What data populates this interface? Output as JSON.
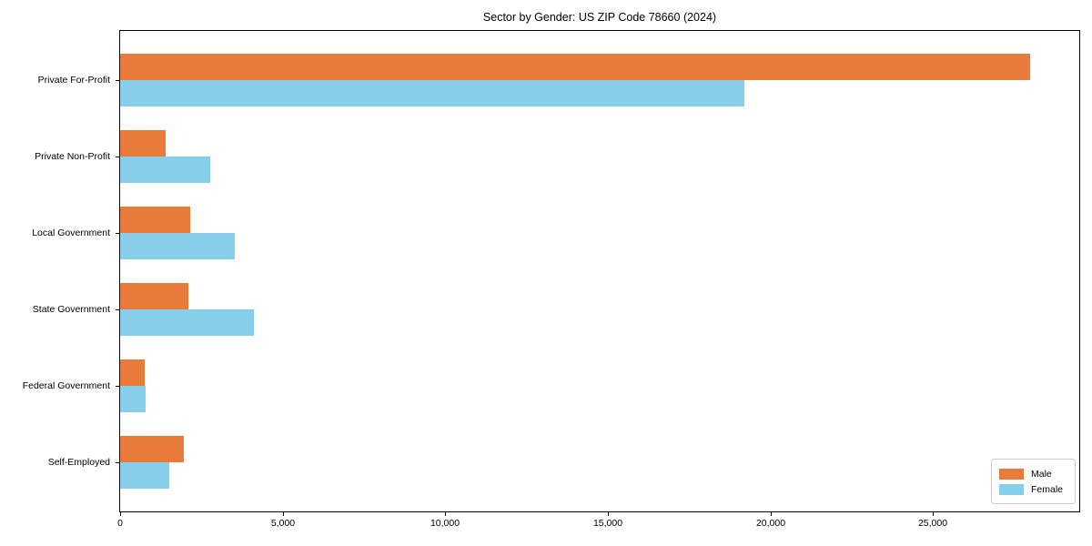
{
  "chart_data": {
    "type": "bar",
    "orientation": "horizontal",
    "title": "Sector by Gender: US ZIP Code 78660 (2024)",
    "categories": [
      "Private For-Profit",
      "Private Non-Profit",
      "Local Government",
      "State Government",
      "Federal Government",
      "Self-Employed"
    ],
    "series": [
      {
        "name": "Male",
        "color": "#e87a3c",
        "values": [
          28000,
          1400,
          2150,
          2100,
          750,
          1950
        ]
      },
      {
        "name": "Female",
        "color": "#87ceea",
        "values": [
          19200,
          2770,
          3520,
          4110,
          780,
          1500
        ]
      }
    ],
    "xlabel": "",
    "ylabel": "",
    "xlim": [
      0,
      29500
    ],
    "x_tick_values": [
      0,
      5000,
      10000,
      15000,
      20000,
      25000
    ],
    "x_tick_labels": [
      "0",
      "5,000",
      "10,000",
      "15,000",
      "20,000",
      "25,000"
    ],
    "grid": false,
    "legend_position": "lower right",
    "plot_background": "#ffffff",
    "spine_color": "#000000"
  }
}
